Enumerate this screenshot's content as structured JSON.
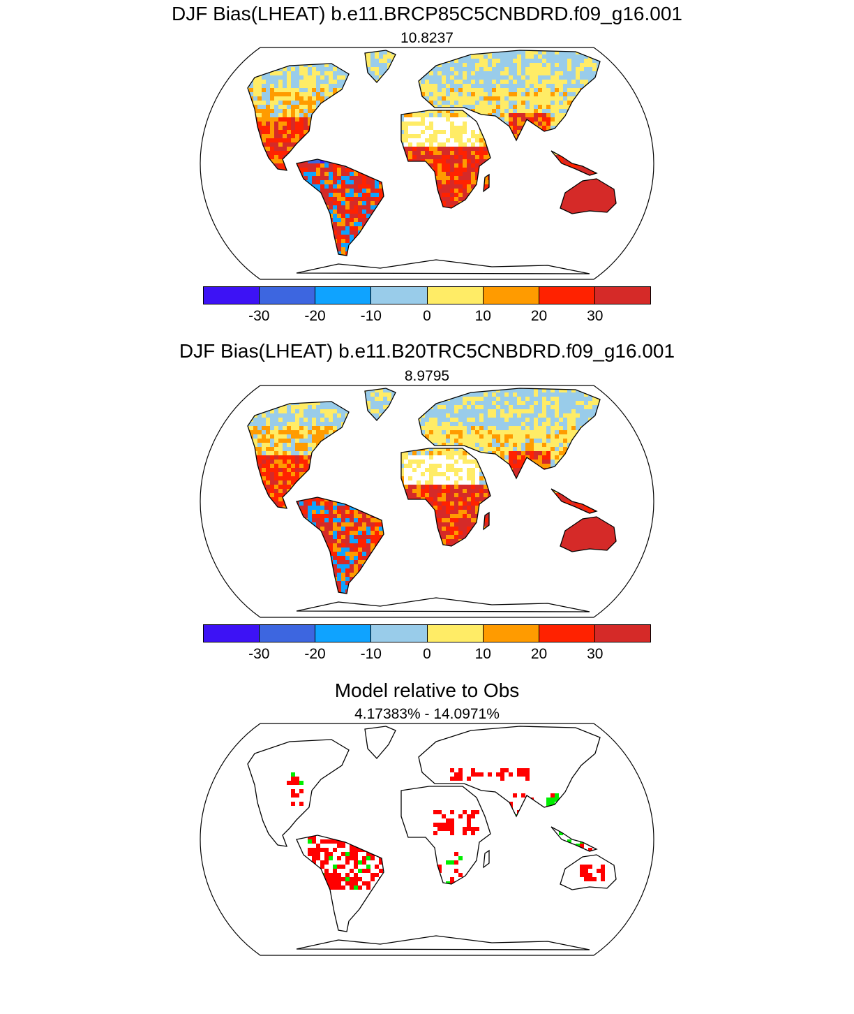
{
  "panels": [
    {
      "title": "DJF Bias(LHEAT) b.e11.BRCP85C5CNBDRD.f09_g16.001",
      "subtitle": "10.8237"
    },
    {
      "title": "DJF Bias(LHEAT) b.e11.B20TRC5CNBDRD.f09_g16.001",
      "subtitle": "8.9795"
    },
    {
      "title": "Model relative to Obs",
      "subtitle": "4.17383% - 14.0971%"
    }
  ],
  "colorbar": {
    "colors": [
      "#3d12f5",
      "#3d66e0",
      "#0fa3ff",
      "#99ccea",
      "#ffec66",
      "#ff9b00",
      "#ff2200",
      "#d52a28"
    ],
    "tick_labels": [
      "-30",
      "-20",
      "-10",
      "0",
      "10",
      "20",
      "30"
    ]
  },
  "ratio_colors": {
    "high": "#ff0000",
    "low": "#00ee00"
  }
}
